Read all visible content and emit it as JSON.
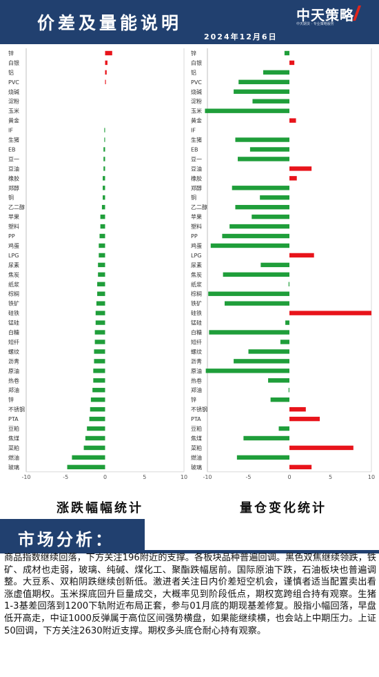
{
  "header": {
    "title": "价差及量能说明",
    "date": "2024年12月6日",
    "logo_text": "中天策略",
    "logo_subtext": "中天期货 · 专业策略服务"
  },
  "colors": {
    "positive": "#e8141b",
    "negative": "#1f9e3a",
    "header": "#21406f"
  },
  "chart_titles": {
    "left": "涨跌幅幅统计",
    "right": "量仓变化统计"
  },
  "section": {
    "title": "市场分析："
  },
  "analysis_text": "商品指数继续回落，下方关注196附近的支撑。各板块品种普遍回调。黑色双焦继续领跌，铁矿、成材也走弱，玻璃、纯碱、煤化工、聚酯跌幅居前。国际原油下跌，石油板块也普遍调整。大豆系、双粕阴跌继续创新低。激进者关注日内价差短空机会，谨慎者适当配置卖出看涨虚值期权。玉米探底回升巨量成交，大概率见到阶段低点，期权宽跨组合持有观察。生猪1-3基差回落到1200下轨附近布局正套，参与01月底的期现基差修复。股指小幅回落，早盘低开高走，中证1000反弹属于高位区间强势横盘，如果能继续横，也会站上中期压力。上证50回调，下方关注2630附近支撑。期权多头底仓耐心持有观察。",
  "chart_data": [
    {
      "type": "bar",
      "orientation": "horizontal",
      "title": "涨跌幅幅统计",
      "xlim": [
        -10,
        10
      ],
      "xticks": [
        -10,
        -5,
        0,
        5,
        10
      ],
      "categories": [
        "锌",
        "白银",
        "铝",
        "PVC",
        "烧碱",
        "淀粉",
        "玉米",
        "黄金",
        "IF",
        "生猪",
        "EB",
        "豆一",
        "豆油",
        "橡胶",
        "郑醇",
        "铜",
        "乙二醇",
        "苹果",
        "塑料",
        "PP",
        "鸡蛋",
        "LPG",
        "尿素",
        "焦炭",
        "纸浆",
        "棕榈",
        "铁矿",
        "硅铁",
        "锰硅",
        "白糖",
        "短纤",
        "螺纹",
        "沥青",
        "原油",
        "热卷",
        "郑油",
        "锌",
        "不锈钢",
        "PTA",
        "豆粕",
        "焦煤",
        "菜粕",
        "燃油",
        "玻璃"
      ],
      "values": [
        0.9,
        0.3,
        0.2,
        0.1,
        0,
        0,
        0,
        0,
        -0.1,
        -0.1,
        -0.2,
        -0.2,
        -0.2,
        -0.3,
        -0.3,
        -0.3,
        -0.4,
        -0.6,
        -0.6,
        -0.7,
        -0.8,
        -0.8,
        -0.9,
        -0.9,
        -1.0,
        -1.0,
        -1.1,
        -1.2,
        -1.2,
        -1.3,
        -1.3,
        -1.4,
        -1.4,
        -1.5,
        -1.5,
        -1.6,
        -1.8,
        -1.9,
        -2.0,
        -2.3,
        -2.5,
        -2.7,
        -4.2,
        -4.8
      ]
    },
    {
      "type": "bar",
      "orientation": "horizontal",
      "title": "量仓变化统计",
      "xlim": [
        -10,
        10
      ],
      "xticks": [
        -10,
        -5,
        0,
        5,
        10
      ],
      "categories": [
        "锌",
        "白银",
        "铝",
        "PVC",
        "烧碱",
        "淀粉",
        "玉米",
        "黄金",
        "IF",
        "生猪",
        "EB",
        "豆一",
        "豆油",
        "橡胶",
        "郑醇",
        "铜",
        "乙二醇",
        "苹果",
        "塑料",
        "PP",
        "鸡蛋",
        "LPG",
        "尿素",
        "焦炭",
        "纸浆",
        "棕榈",
        "铁矿",
        "硅铁",
        "锰硅",
        "白糖",
        "短纤",
        "螺纹",
        "沥青",
        "原油",
        "热卷",
        "郑油",
        "锌",
        "不锈钢",
        "PTA",
        "豆粕",
        "焦煤",
        "菜粕",
        "燃油",
        "玻璃"
      ],
      "values": [
        -0.6,
        0.6,
        -3.2,
        -6.2,
        -6.8,
        -4.5,
        -10.3,
        0.8,
        0,
        -6.6,
        -4.8,
        -6.3,
        2.7,
        0.9,
        -7.0,
        -3.6,
        -6.6,
        -4.6,
        -7.3,
        -8.2,
        -9.6,
        3.0,
        -3.5,
        -8.1,
        -0.1,
        -9.9,
        -7.9,
        10.0,
        -0.5,
        -9.8,
        -1.1,
        -5.0,
        -6.8,
        -10.2,
        -2.6,
        -0.1,
        -2.3,
        2.0,
        3.7,
        -1.3,
        -5.6,
        7.8,
        -6.4,
        2.7
      ]
    }
  ]
}
